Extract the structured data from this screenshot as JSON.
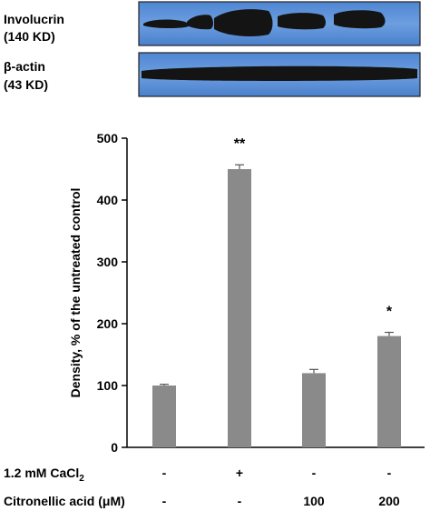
{
  "blot": {
    "rows": [
      {
        "name_line1": "Involucrin",
        "name_line2": "(140 KD)"
      },
      {
        "name_line1": "β-actin",
        "name_line2": "(43 KD)"
      }
    ],
    "band_color": "#141414",
    "membrane_color": "#5b8fd6"
  },
  "chart_data": {
    "type": "bar",
    "categories": [
      "1",
      "2",
      "3",
      "4"
    ],
    "values": [
      100,
      450,
      120,
      180
    ],
    "errors": [
      2,
      7,
      6,
      6
    ],
    "significance": [
      "",
      "**",
      "",
      "*"
    ],
    "ylabel": "Density, % of the untreated control",
    "ylim": [
      0,
      500
    ],
    "yticks": [
      0,
      100,
      200,
      300,
      400,
      500
    ],
    "bar_color": "#8a8a8a",
    "grid": false
  },
  "treatments": [
    {
      "label": "1.2 mM CaCl",
      "label_sub": "2",
      "values": [
        "-",
        "+",
        "-",
        "-"
      ]
    },
    {
      "label": "Citronellic acid (μM)",
      "label_sub": "",
      "values": [
        "-",
        "-",
        "100",
        "200"
      ]
    }
  ]
}
